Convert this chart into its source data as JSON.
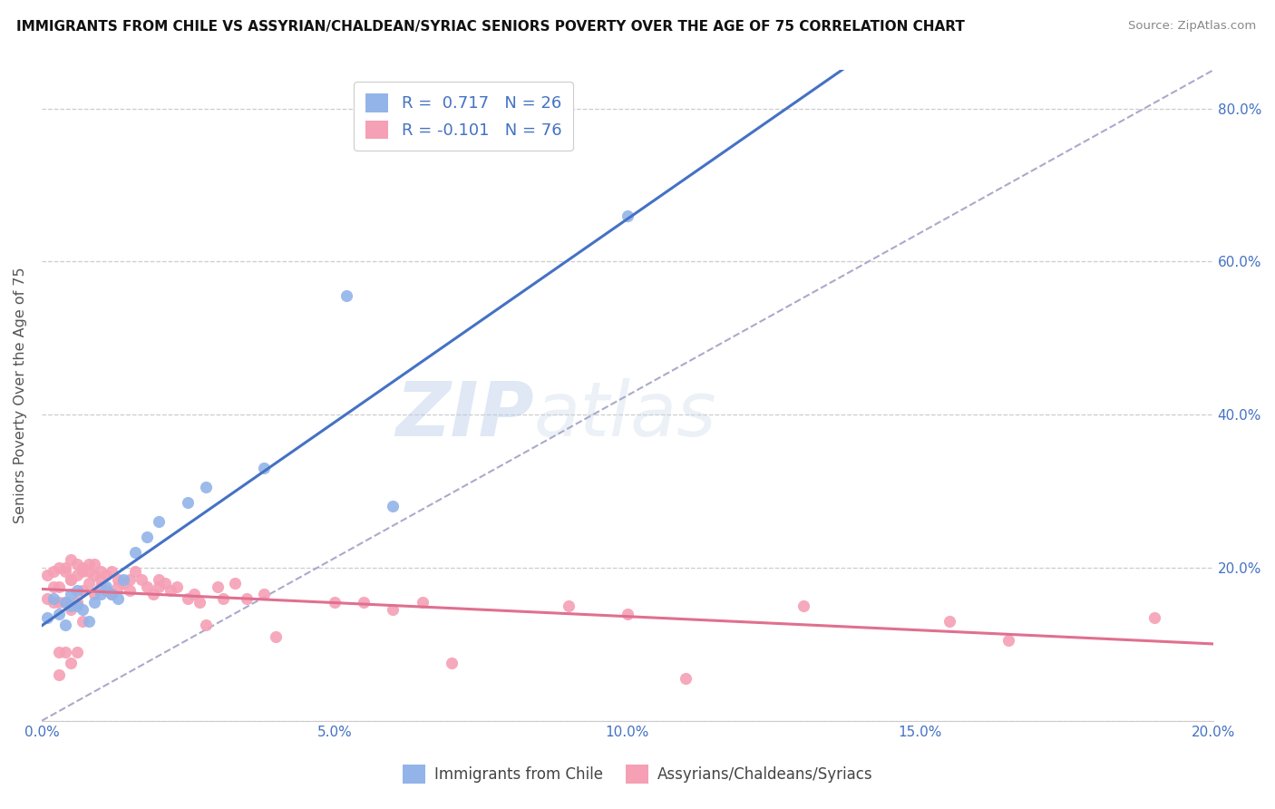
{
  "title": "IMMIGRANTS FROM CHILE VS ASSYRIAN/CHALDEAN/SYRIAC SENIORS POVERTY OVER THE AGE OF 75 CORRELATION CHART",
  "source": "Source: ZipAtlas.com",
  "ylabel": "Seniors Poverty Over the Age of 75",
  "background_color": "#ffffff",
  "grid_color": "#cccccc",
  "watermark_zip": "ZIP",
  "watermark_atlas": "atlas",
  "xlim": [
    0.0,
    0.2
  ],
  "ylim": [
    0.0,
    0.85
  ],
  "xticks": [
    0.0,
    0.05,
    0.1,
    0.15,
    0.2
  ],
  "yticks": [
    0.0,
    0.2,
    0.4,
    0.6,
    0.8
  ],
  "color_blue": "#92b4e8",
  "color_pink": "#f5a0b5",
  "line_blue": "#4472c4",
  "line_pink": "#e07090",
  "line_dashed_color": "#aaaacc",
  "tick_color": "#4472c4",
  "chile_x": [
    0.001,
    0.002,
    0.003,
    0.004,
    0.004,
    0.005,
    0.005,
    0.006,
    0.006,
    0.007,
    0.008,
    0.009,
    0.01,
    0.011,
    0.012,
    0.013,
    0.014,
    0.016,
    0.018,
    0.02,
    0.025,
    0.028,
    0.038,
    0.052,
    0.06,
    0.1
  ],
  "chile_y": [
    0.135,
    0.16,
    0.14,
    0.125,
    0.155,
    0.15,
    0.165,
    0.15,
    0.17,
    0.145,
    0.13,
    0.155,
    0.165,
    0.175,
    0.165,
    0.16,
    0.185,
    0.22,
    0.24,
    0.26,
    0.285,
    0.305,
    0.33,
    0.555,
    0.28,
    0.66
  ],
  "assyrian_x": [
    0.001,
    0.001,
    0.002,
    0.002,
    0.002,
    0.003,
    0.003,
    0.003,
    0.003,
    0.003,
    0.004,
    0.004,
    0.004,
    0.004,
    0.005,
    0.005,
    0.005,
    0.005,
    0.005,
    0.006,
    0.006,
    0.006,
    0.006,
    0.007,
    0.007,
    0.007,
    0.007,
    0.008,
    0.008,
    0.008,
    0.009,
    0.009,
    0.009,
    0.01,
    0.01,
    0.01,
    0.011,
    0.011,
    0.012,
    0.012,
    0.013,
    0.013,
    0.014,
    0.015,
    0.015,
    0.016,
    0.017,
    0.018,
    0.019,
    0.02,
    0.02,
    0.021,
    0.022,
    0.023,
    0.025,
    0.026,
    0.027,
    0.028,
    0.03,
    0.031,
    0.033,
    0.035,
    0.038,
    0.04,
    0.05,
    0.055,
    0.06,
    0.065,
    0.07,
    0.09,
    0.1,
    0.11,
    0.13,
    0.155,
    0.165,
    0.19
  ],
  "assyrian_y": [
    0.19,
    0.16,
    0.155,
    0.195,
    0.175,
    0.175,
    0.2,
    0.155,
    0.09,
    0.06,
    0.2,
    0.195,
    0.155,
    0.09,
    0.21,
    0.185,
    0.185,
    0.145,
    0.075,
    0.205,
    0.19,
    0.155,
    0.09,
    0.2,
    0.195,
    0.17,
    0.13,
    0.205,
    0.195,
    0.18,
    0.205,
    0.19,
    0.165,
    0.195,
    0.185,
    0.175,
    0.19,
    0.17,
    0.195,
    0.165,
    0.185,
    0.175,
    0.18,
    0.185,
    0.17,
    0.195,
    0.185,
    0.175,
    0.165,
    0.185,
    0.175,
    0.18,
    0.17,
    0.175,
    0.16,
    0.165,
    0.155,
    0.125,
    0.175,
    0.16,
    0.18,
    0.16,
    0.165,
    0.11,
    0.155,
    0.155,
    0.145,
    0.155,
    0.075,
    0.15,
    0.14,
    0.055,
    0.15,
    0.13,
    0.105,
    0.135
  ]
}
